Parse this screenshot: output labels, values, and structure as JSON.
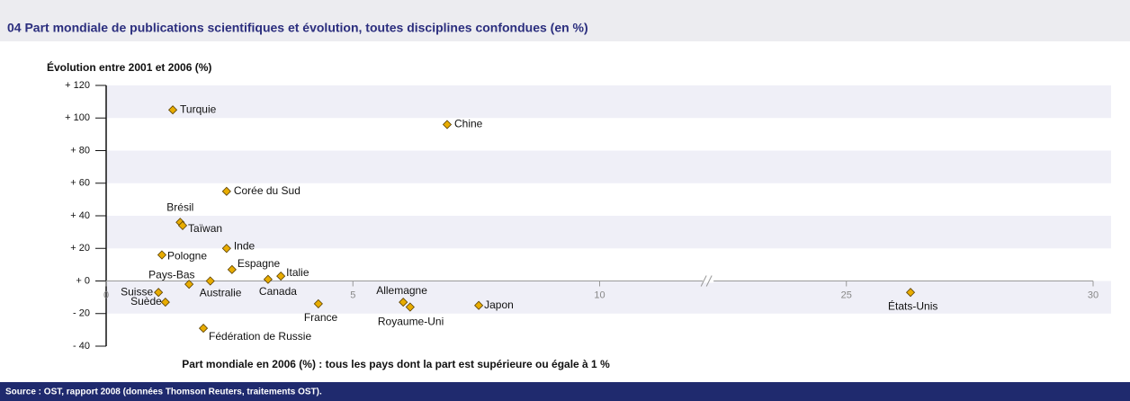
{
  "chart_data": {
    "type": "scatter",
    "title": "04  Part mondiale de publications scientifiques et évolution, toutes disciplines confondues (en %)",
    "y_label": "Évolution entre 2001 et 2006 (%)",
    "x_label": "Part mondiale en 2006 (%) : tous les pays dont la part est supérieure ou égale à 1 %",
    "source": "Source : OST, rapport 2008 (données Thomson Reuters, traitements OST).",
    "color": "#e8ac00",
    "labels": [
      "Turquie",
      "Chine",
      "Corée du Sud",
      "Brésil",
      "Taïwan",
      "Inde",
      "Pologne",
      "Espagne",
      "Italie",
      "Canada",
      "Pays-Bas",
      "Australie",
      "Suisse",
      "Suède",
      "France",
      "Allemagne",
      "Royaume-Uni",
      "Japon",
      "Fédération de Russie",
      "États-Unis"
    ],
    "x": [
      1.35,
      6.91,
      2.44,
      1.5,
      1.55,
      2.44,
      1.13,
      2.55,
      3.54,
      3.28,
      1.68,
      2.11,
      1.06,
      1.2,
      4.3,
      6.02,
      6.16,
      7.55,
      1.97,
      26.3
    ],
    "values": [
      105,
      96,
      55,
      36,
      34,
      20,
      16,
      7,
      3,
      1,
      -2,
      0,
      -7,
      -13,
      -14,
      -13,
      -16,
      -15,
      -29,
      -7
    ],
    "xlim": [
      0,
      30
    ],
    "xbreak": [
      12.2,
      22.2
    ],
    "xticks": [
      0,
      5,
      10,
      25,
      30
    ],
    "ylim": [
      -40,
      120
    ],
    "yticks": [
      {
        "value": 120,
        "label": "+ 120"
      },
      {
        "value": 100,
        "label": "+ 100"
      },
      {
        "value": 80,
        "label": "+ 80"
      },
      {
        "value": 60,
        "label": "+ 60"
      },
      {
        "value": 40,
        "label": "+ 40"
      },
      {
        "value": 20,
        "label": "+ 20"
      },
      {
        "value": 0,
        "label": "+ 0"
      },
      {
        "value": -20,
        "label": "- 20"
      },
      {
        "value": -40,
        "label": "- 40"
      }
    ],
    "grid": "bands"
  }
}
